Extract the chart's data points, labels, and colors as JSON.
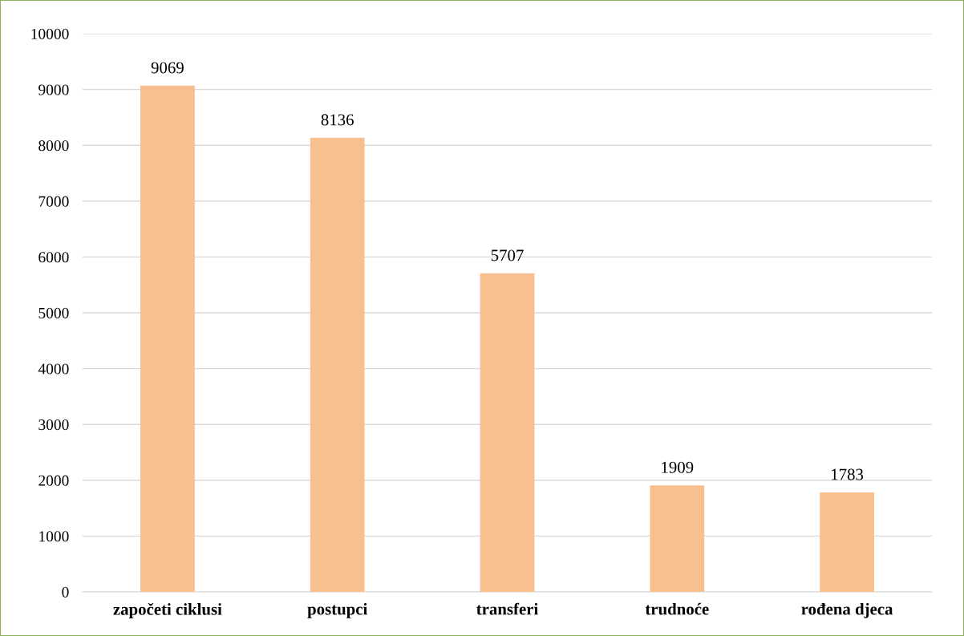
{
  "chart_data": {
    "type": "bar",
    "categories": [
      "započeti ciklusi",
      "postupci",
      "transferi",
      "trudnoće",
      "rođena djeca"
    ],
    "values": [
      9069,
      8136,
      5707,
      1909,
      1783
    ],
    "color": "#f8c08f",
    "ylim": [
      0,
      10000
    ],
    "yticks": [
      0,
      1000,
      2000,
      3000,
      4000,
      5000,
      6000,
      7000,
      8000,
      9000,
      10000
    ],
    "grid": "y",
    "data_labels": true
  }
}
